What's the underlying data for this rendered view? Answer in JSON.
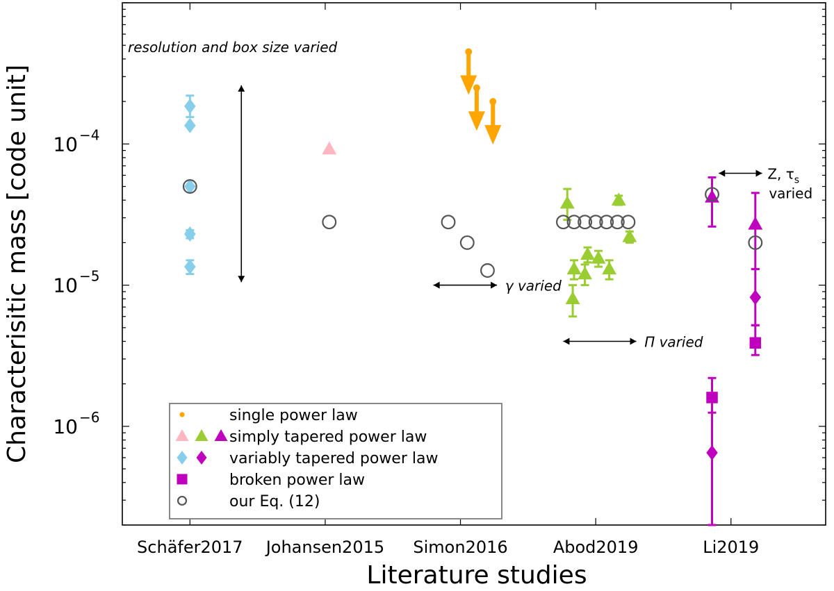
{
  "chart_data": {
    "type": "scatter",
    "xlabel": "Literature studies",
    "ylabel": "Characterisitic mass [code unit]",
    "yscale": "log",
    "ylim": [
      2e-07,
      0.001
    ],
    "xlim": [
      -0.5,
      4.7
    ],
    "categories": [
      "Schäfer2017",
      "Johansen2015",
      "Simon2016",
      "Abod2019",
      "Li2019"
    ],
    "y_ticks": [
      {
        "value": 1e-06,
        "base": "10",
        "exp": "−6"
      },
      {
        "value": 1e-05,
        "base": "10",
        "exp": "−5"
      },
      {
        "value": 0.0001,
        "base": "10",
        "exp": "−4"
      }
    ],
    "colors": {
      "schafer": "#87ceeb",
      "johansen": "#ffb6c1",
      "simon": "#ffa500",
      "abod": "#9acd32",
      "li": "#bf00bf",
      "eq12": "#555555"
    },
    "series": [
      {
        "name": "single power law",
        "marker": "dot",
        "color": "#ffa500",
        "points": [
          {
            "x": 2.06,
            "y": 0.00045,
            "upper_limit": true
          },
          {
            "x": 2.12,
            "y": 0.00025,
            "upper_limit": true
          },
          {
            "x": 2.24,
            "y": 0.0002,
            "upper_limit": true
          }
        ]
      },
      {
        "name": "simply tapered power law",
        "marker": "triangle",
        "color": "#ffb6c1",
        "points": [
          {
            "x": 1.03,
            "y": 9.2e-05
          }
        ]
      },
      {
        "name": "simply tapered power law",
        "marker": "triangle",
        "color": "#9acd32",
        "points": [
          {
            "x": 2.79,
            "y": 3.8e-05,
            "ylo": 2.9e-05,
            "yhi": 4.8e-05
          },
          {
            "x": 2.83,
            "y": 8e-06,
            "ylo": 6e-06,
            "yhi": 1e-05
          },
          {
            "x": 2.84,
            "y": 1.3e-05,
            "ylo": 1.1e-05,
            "yhi": 1.5e-05
          },
          {
            "x": 2.92,
            "y": 1.2e-05,
            "ylo": 1e-05,
            "yhi": 1.4e-05
          },
          {
            "x": 2.94,
            "y": 1.65e-05,
            "ylo": 1.45e-05,
            "yhi": 1.85e-05
          },
          {
            "x": 3.02,
            "y": 1.55e-05,
            "ylo": 1.35e-05,
            "yhi": 1.75e-05
          },
          {
            "x": 3.1,
            "y": 1.3e-05,
            "ylo": 1.1e-05,
            "yhi": 1.5e-05
          },
          {
            "x": 3.17,
            "y": 4e-05,
            "ylo": 3.7e-05,
            "yhi": 4.3e-05
          },
          {
            "x": 3.25,
            "y": 2.2e-05,
            "ylo": 2e-05,
            "yhi": 2.4e-05
          }
        ]
      },
      {
        "name": "simply tapered power law",
        "marker": "triangle",
        "color": "#bf00bf",
        "points": [
          {
            "x": 3.86,
            "y": 4.2e-05,
            "ylo": 2.6e-05,
            "yhi": 5.8e-05
          },
          {
            "x": 4.18,
            "y": 2.7e-05,
            "ylo": 1.3e-05,
            "yhi": 4.5e-05
          }
        ]
      },
      {
        "name": "variably tapered power law",
        "marker": "diamond",
        "color": "#87ceeb",
        "points": [
          {
            "x": 0.0,
            "y": 0.000185,
            "ylo": 0.000155,
            "yhi": 0.00022
          },
          {
            "x": 0.0,
            "y": 0.000135
          },
          {
            "x": 0.0,
            "y": 5e-05
          },
          {
            "x": 0.0,
            "y": 2.3e-05,
            "ylo": 2.15e-05,
            "yhi": 2.45e-05
          },
          {
            "x": 0.0,
            "y": 1.35e-05,
            "ylo": 1.2e-05,
            "yhi": 1.5e-05
          }
        ]
      },
      {
        "name": "variably tapered power law",
        "marker": "diamond",
        "color": "#bf00bf",
        "points": [
          {
            "x": 3.86,
            "y": 6.5e-07,
            "ylo": 2e-07,
            "yhi": 1.6e-06
          },
          {
            "x": 4.18,
            "y": 8.2e-06,
            "ylo": 5.2e-06,
            "yhi": 1.3e-05
          }
        ]
      },
      {
        "name": "broken power law",
        "marker": "square",
        "color": "#bf00bf",
        "points": [
          {
            "x": 3.86,
            "y": 1.6e-06,
            "ylo": 1.25e-06,
            "yhi": 2.2e-06
          },
          {
            "x": 4.18,
            "y": 3.9e-06,
            "ylo": 3.2e-06,
            "yhi": 5.2e-06
          }
        ]
      },
      {
        "name": "our Eq. (12)",
        "marker": "open-circle",
        "color": "#555555",
        "points": [
          {
            "x": 0.0,
            "y": 5e-05
          },
          {
            "x": 1.03,
            "y": 2.8e-05
          },
          {
            "x": 1.91,
            "y": 2.8e-05
          },
          {
            "x": 2.05,
            "y": 2e-05
          },
          {
            "x": 2.2,
            "y": 1.27e-05
          },
          {
            "x": 2.76,
            "y": 2.8e-05
          },
          {
            "x": 2.84,
            "y": 2.8e-05
          },
          {
            "x": 2.92,
            "y": 2.8e-05
          },
          {
            "x": 3.0,
            "y": 2.8e-05
          },
          {
            "x": 3.08,
            "y": 2.8e-05
          },
          {
            "x": 3.16,
            "y": 2.8e-05
          },
          {
            "x": 3.24,
            "y": 2.8e-05
          },
          {
            "x": 3.86,
            "y": 4.4e-05
          },
          {
            "x": 4.18,
            "y": 2e-05
          }
        ]
      }
    ],
    "annotations": [
      {
        "id": "resolution",
        "text": "resolution and box size varied",
        "arrow": "vertical",
        "x": 0.38,
        "y_from": 1.05e-05,
        "y_to": 0.00026,
        "text_x": -0.5,
        "text_y": 0.00048,
        "italic": true
      },
      {
        "id": "gamma",
        "text": "γ varied",
        "arrow": "horizontal",
        "y": 1e-05,
        "x_from": 1.8,
        "x_to": 2.27,
        "text_x": 2.33,
        "italic": true
      },
      {
        "id": "pi",
        "text": "Π varied",
        "arrow": "horizontal",
        "y": 4e-06,
        "x_from": 2.76,
        "x_to": 3.3,
        "text_x": 3.36,
        "italic": true
      },
      {
        "id": "z-taus",
        "text": "Z,  τ",
        "subscript": "s",
        "text2": "varied",
        "arrow": "horizontal",
        "y": 6.2e-05,
        "x_from": 3.91,
        "x_to": 4.23,
        "text_x": 4.27,
        "italic": false
      }
    ],
    "legend": {
      "position": "lower-left",
      "entries": [
        {
          "label": "single power law",
          "markers": [
            {
              "shape": "dot",
              "color": "#ffa500"
            }
          ]
        },
        {
          "label": "simply tapered power law",
          "markers": [
            {
              "shape": "triangle",
              "color": "#ffb6c1"
            },
            {
              "shape": "triangle",
              "color": "#9acd32"
            },
            {
              "shape": "triangle",
              "color": "#bf00bf"
            }
          ]
        },
        {
          "label": "variably tapered power law",
          "markers": [
            {
              "shape": "diamond",
              "color": "#87ceeb"
            },
            {
              "shape": "diamond",
              "color": "#bf00bf"
            }
          ]
        },
        {
          "label": "broken power law",
          "markers": [
            {
              "shape": "square",
              "color": "#bf00bf"
            }
          ]
        },
        {
          "label": "our Eq. (12)",
          "markers": [
            {
              "shape": "open-circle",
              "color": "#555555"
            }
          ]
        }
      ]
    }
  }
}
